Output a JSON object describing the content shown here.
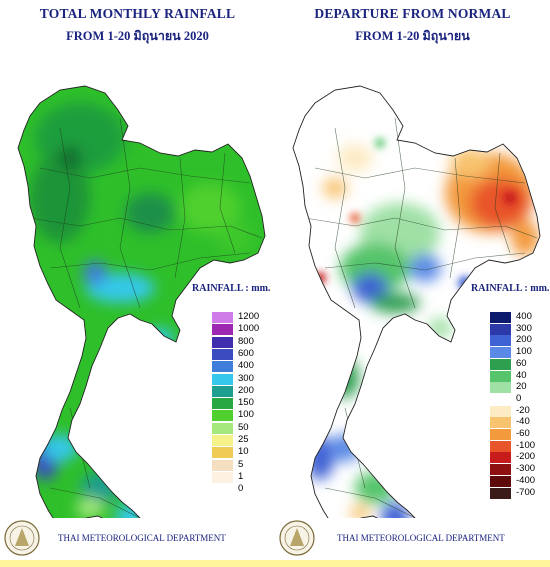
{
  "left": {
    "title_line1": "TOTAL MONTHLY RAINFALL",
    "title_line2": "FROM 1-20 มิถุนายน 2020",
    "legend_title": "RAINFALL : mm.",
    "legend": [
      {
        "label": "1200",
        "color": "#d07ce8"
      },
      {
        "label": "1000",
        "color": "#9c27b0"
      },
      {
        "label": "800",
        "color": "#3f2fae"
      },
      {
        "label": "600",
        "color": "#3b4cc0"
      },
      {
        "label": "400",
        "color": "#3f7ddb"
      },
      {
        "label": "300",
        "color": "#35c8ea"
      },
      {
        "label": "200",
        "color": "#1d9e8e"
      },
      {
        "label": "150",
        "color": "#27a842"
      },
      {
        "label": "100",
        "color": "#4fd02e"
      },
      {
        "label": "50",
        "color": "#a5e87c"
      },
      {
        "label": "25",
        "color": "#f5f28a"
      },
      {
        "label": "10",
        "color": "#f0cc56"
      },
      {
        "label": "5",
        "color": "#f4e0c0"
      },
      {
        "label": "1",
        "color": "#fdf2e2"
      },
      {
        "label": "0",
        "color": "#ffffff"
      }
    ],
    "footer": "THAI METEOROLOGICAL DEPARTMENT"
  },
  "right": {
    "title_line1": "DEPARTURE FROM NORMAL",
    "title_line2": "FROM 1-20 มิถุนายน",
    "legend_title": "RAINFALL : mm.",
    "legend": [
      {
        "label": "400",
        "color": "#0d1b6e"
      },
      {
        "label": "300",
        "color": "#2b3aa8"
      },
      {
        "label": "200",
        "color": "#3f62d4"
      },
      {
        "label": "100",
        "color": "#5b8ae6"
      },
      {
        "label": "60",
        "color": "#2e9e4f"
      },
      {
        "label": "40",
        "color": "#55c46a"
      },
      {
        "label": "20",
        "color": "#9fe0a5"
      },
      {
        "label": "0",
        "color": "#ffffff"
      },
      {
        "label": "-20",
        "color": "#fdebc4"
      },
      {
        "label": "-40",
        "color": "#f8c36e"
      },
      {
        "label": "-60",
        "color": "#f39a3c"
      },
      {
        "label": "-100",
        "color": "#e8552a"
      },
      {
        "label": "-200",
        "color": "#c81c1c"
      },
      {
        "label": "-300",
        "color": "#8e1010"
      },
      {
        "label": "-400",
        "color": "#5e0a0a"
      },
      {
        "label": "-700",
        "color": "#3b1a1a"
      }
    ],
    "footer": "THAI METEOROLOGICAL DEPARTMENT"
  }
}
